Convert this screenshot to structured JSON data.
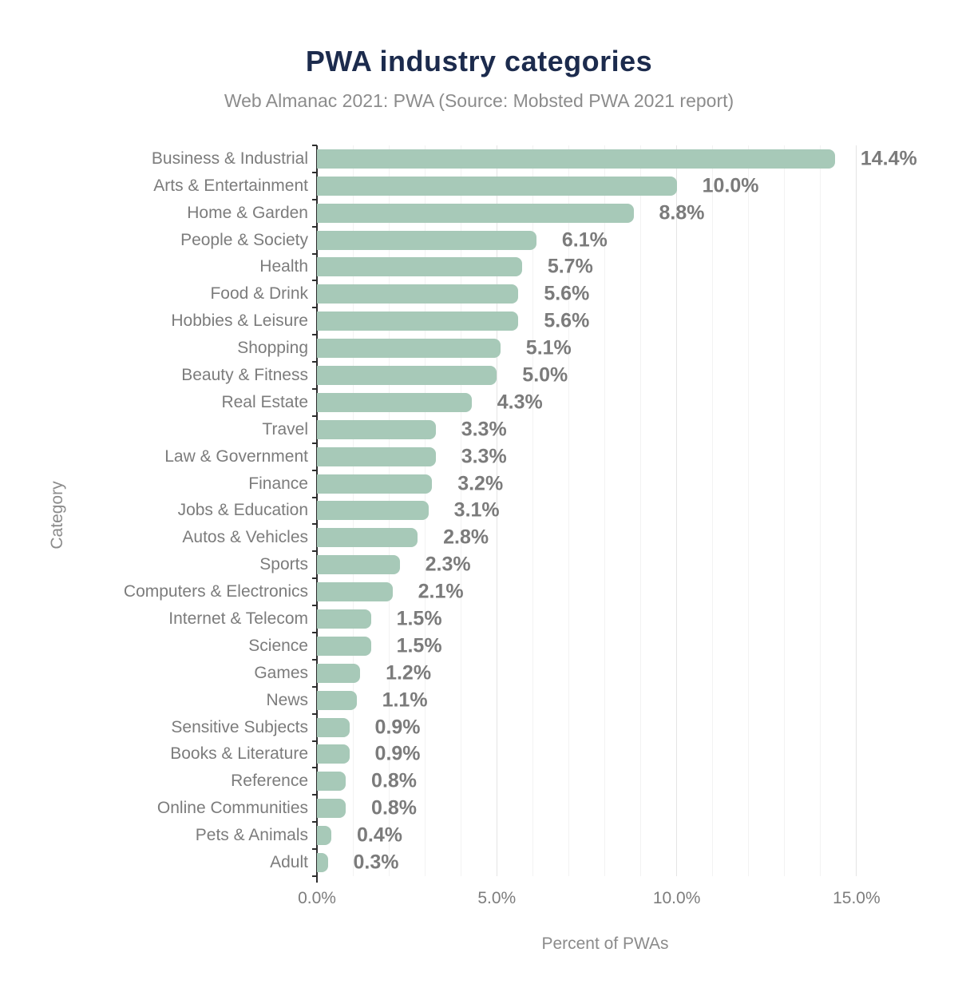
{
  "header": {
    "title": "PWA industry categories",
    "subtitle": "Web Almanac 2021: PWA (Source: Mobsted PWA 2021 report)"
  },
  "colors": {
    "bar": "#a7c9b8",
    "title": "#1c2b4d",
    "subtitle": "#8c8c8c",
    "label_gray": "#7b7b7b",
    "axis_line": "#2e2e2e",
    "gridline_minor": "#f2f2f2",
    "gridline_major": "#e4e4e4"
  },
  "chart_data": {
    "type": "bar",
    "orientation": "horizontal",
    "title": "PWA industry categories",
    "subtitle": "Web Almanac 2021: PWA (Source: Mobsted PWA 2021 report)",
    "xlabel": "Percent of PWAs",
    "ylabel": "Category",
    "xlim": [
      0,
      16
    ],
    "grid": true,
    "gridline_step_pct": 1,
    "x_tick_values": [
      0,
      5,
      10,
      15
    ],
    "x_tick_labels": [
      "0.0%",
      "5.0%",
      "10.0%",
      "15.0%"
    ],
    "categories": [
      "Business & Industrial",
      "Arts & Entertainment",
      "Home & Garden",
      "People & Society",
      "Health",
      "Food & Drink",
      "Hobbies & Leisure",
      "Shopping",
      "Beauty & Fitness",
      "Real Estate",
      "Travel",
      "Law & Government",
      "Finance",
      "Jobs & Education",
      "Autos & Vehicles",
      "Sports",
      "Computers & Electronics",
      "Internet & Telecom",
      "Science",
      "Games",
      "News",
      "Sensitive Subjects",
      "Books & Literature",
      "Reference",
      "Online Communities",
      "Pets & Animals",
      "Adult"
    ],
    "values": [
      14.4,
      10.0,
      8.8,
      6.1,
      5.7,
      5.6,
      5.6,
      5.1,
      5.0,
      4.3,
      3.3,
      3.3,
      3.2,
      3.1,
      2.8,
      2.3,
      2.1,
      1.5,
      1.5,
      1.2,
      1.1,
      0.9,
      0.9,
      0.8,
      0.8,
      0.4,
      0.3
    ],
    "value_labels": [
      "14.4%",
      "10.0%",
      "8.8%",
      "6.1%",
      "5.7%",
      "5.6%",
      "5.6%",
      "5.1%",
      "5.0%",
      "4.3%",
      "3.3%",
      "3.3%",
      "3.2%",
      "3.1%",
      "2.8%",
      "2.3%",
      "2.1%",
      "1.5%",
      "1.5%",
      "1.2%",
      "1.1%",
      "0.9%",
      "0.9%",
      "0.8%",
      "0.8%",
      "0.4%",
      "0.3%"
    ]
  }
}
